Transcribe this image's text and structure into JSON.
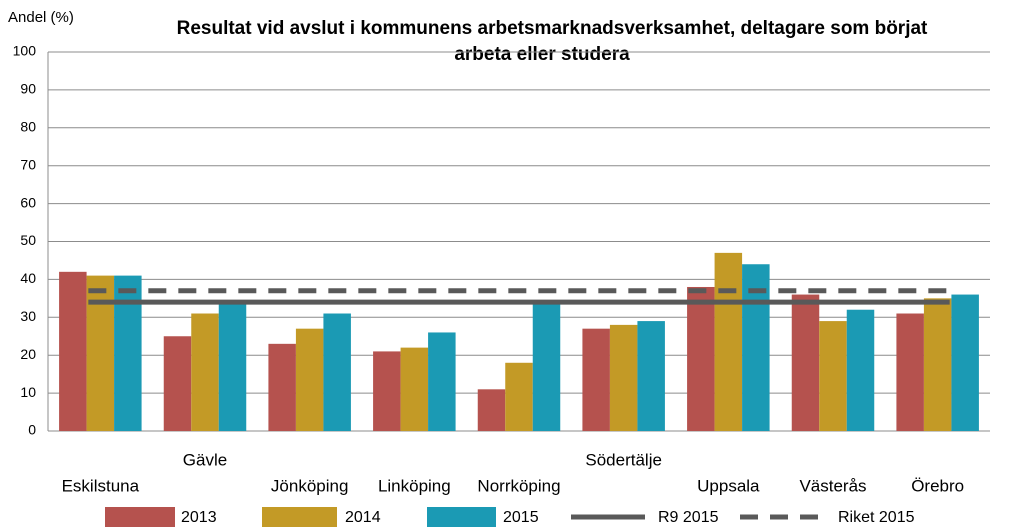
{
  "chart_data": {
    "type": "bar",
    "title": [
      "Resultat vid avslut i kommunens arbetsmarknadsverksamhet, deltagare som börjat",
      "arbeta eller studera"
    ],
    "y_label": "Andel (%)",
    "categories": [
      "Eskilstuna",
      "Gävle",
      "Jönköping",
      "Linköping",
      "Norrköping",
      "Södertälje",
      "Uppsala",
      "Västerås",
      "Örebro"
    ],
    "series": [
      {
        "name": "2013",
        "color": "#b5524e",
        "values": [
          42,
          25,
          23,
          21,
          11,
          27,
          38,
          36,
          31
        ]
      },
      {
        "name": "2014",
        "color": "#c39a26",
        "values": [
          41,
          31,
          27,
          22,
          18,
          28,
          47,
          29,
          35
        ]
      },
      {
        "name": "2015",
        "color": "#1b9ab4",
        "values": [
          41,
          34,
          31,
          26,
          34,
          29,
          44,
          32,
          36
        ]
      }
    ],
    "reference_lines": [
      {
        "name": "R9 2015",
        "value": 34,
        "color": "#595959",
        "dashed": false
      },
      {
        "name": "Riket 2015",
        "value": 37,
        "color": "#595959",
        "dashed": true
      }
    ],
    "ylim": [
      0,
      100
    ],
    "yticks": [
      0,
      10,
      20,
      30,
      40,
      50,
      60,
      70,
      80,
      90,
      100
    ],
    "grid": true,
    "legend": "bottom"
  }
}
